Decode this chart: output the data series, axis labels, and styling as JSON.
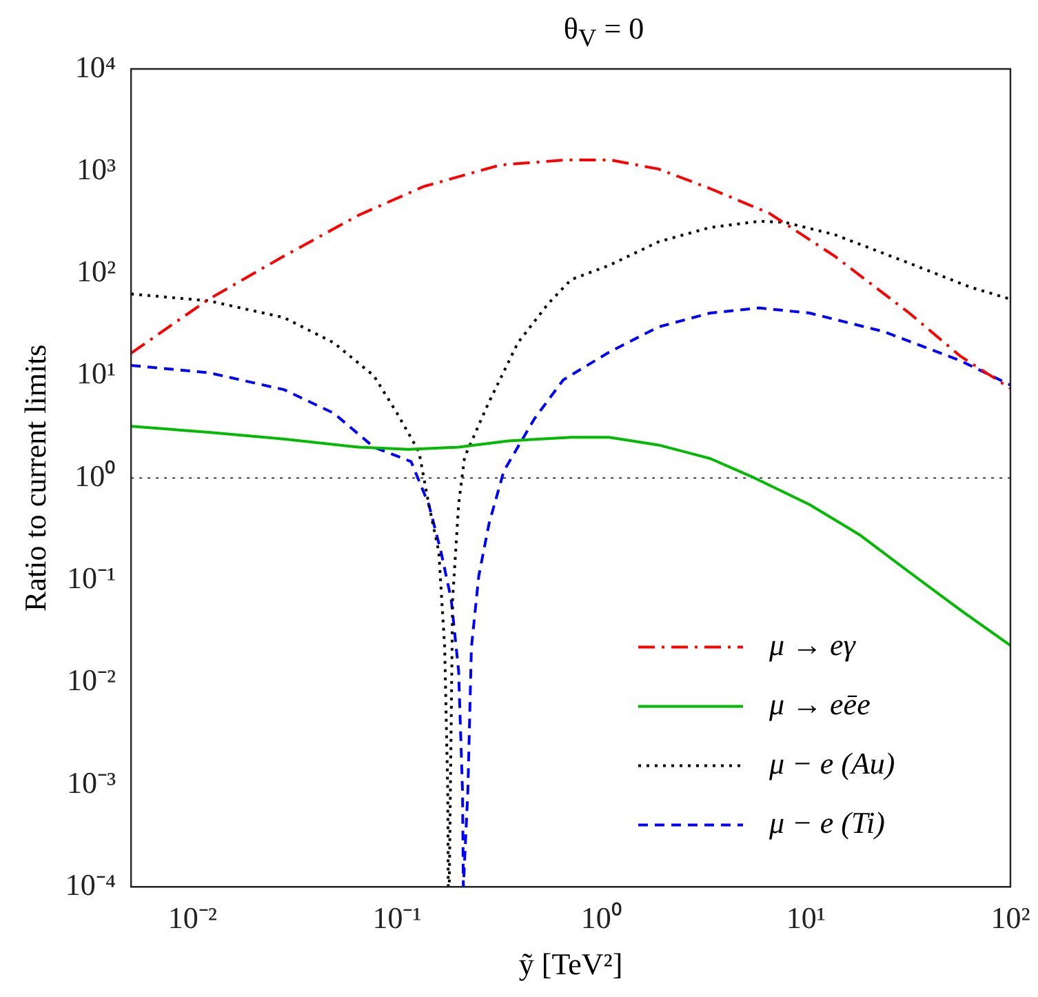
{
  "chart_data": {
    "type": "line",
    "title": "θ$_{V}$ = 0",
    "xlabel": "ỹ [TeV²]",
    "ylabel": "Ratio to current limits",
    "log": "xy",
    "grid": false,
    "legend": "bottom right",
    "marker": "none",
    "xlim": [
      0.005,
      100
    ],
    "ylim": [
      0.0001,
      10000
    ],
    "xticks": [
      {
        "value": 0.01,
        "label": "10⁻²"
      },
      {
        "value": 0.1,
        "label": "10⁻¹"
      },
      {
        "value": 1,
        "label": "10⁰"
      },
      {
        "value": 10,
        "label": "10¹"
      },
      {
        "value": 100,
        "label": "10²"
      }
    ],
    "yticks": [
      {
        "value": 0.0001,
        "label": "10⁻⁴"
      },
      {
        "value": 0.001,
        "label": "10⁻³"
      },
      {
        "value": 0.01,
        "label": "10⁻²"
      },
      {
        "value": 0.1,
        "label": "10⁻¹"
      },
      {
        "value": 1,
        "label": "10⁰"
      },
      {
        "value": 10,
        "label": "10¹"
      },
      {
        "value": 100,
        "label": "10²"
      },
      {
        "value": 1000,
        "label": "10³"
      },
      {
        "value": 10000,
        "label": "10⁴"
      }
    ],
    "ref_lines": [
      {
        "axis": "y",
        "value": 1,
        "color": "#000000",
        "line_style": "dotted"
      }
    ],
    "series": [
      {
        "name": "μ → eγ",
        "color": "#ff0000",
        "line_style": "dashdot",
        "x": [
          0.005,
          0.012,
          0.028,
          0.065,
          0.135,
          0.32,
          0.67,
          1.1,
          1.9,
          3.4,
          6.6,
          13.8,
          32,
          57,
          100
        ],
        "values": [
          16.6,
          56,
          148,
          372,
          708,
          1150,
          1290,
          1290,
          1050,
          676,
          389,
          148,
          41,
          15.5,
          7.5
        ]
      },
      {
        "name": "μ → eēe",
        "color": "#00bb00",
        "line_style": "solid",
        "x": [
          0.005,
          0.012,
          0.028,
          0.065,
          0.114,
          0.2,
          0.35,
          0.71,
          1.09,
          1.9,
          3.4,
          5.6,
          10.4,
          18.2,
          32,
          57,
          100
        ],
        "values": [
          3.2,
          2.8,
          2.4,
          2.0,
          1.9,
          2.0,
          2.3,
          2.5,
          2.5,
          2.1,
          1.55,
          1.0,
          0.55,
          0.28,
          0.12,
          0.051,
          0.023
        ]
      },
      {
        "name": "μ − e (Au)",
        "color": "#000000",
        "line_style": "dotted",
        "x": [
          0.005,
          0.012,
          0.028,
          0.049,
          0.077,
          0.1,
          0.128,
          0.143,
          0.16,
          0.171,
          0.177,
          0.178,
          0.18,
          0.187,
          0.2,
          0.214,
          0.28,
          0.39,
          0.55,
          0.71,
          1.09,
          1.9,
          3.4,
          5.9,
          7.9,
          13.8,
          32,
          63,
          100
        ],
        "values": [
          63,
          54,
          37,
          21,
          10,
          4.3,
          1.8,
          0.55,
          0.19,
          0.022,
          0.00087,
          0.0001,
          0.0001,
          0.065,
          0.55,
          1.6,
          5.4,
          21,
          51,
          87,
          120,
          204,
          282,
          324,
          316,
          240,
          126,
          74,
          56
        ]
      },
      {
        "name": "μ − e (Ti)",
        "color": "#0000ff",
        "line_style": "dashed",
        "x": [
          0.005,
          0.012,
          0.028,
          0.049,
          0.077,
          0.117,
          0.143,
          0.164,
          0.184,
          0.2,
          0.209,
          0.211,
          0.222,
          0.231,
          0.251,
          0.282,
          0.333,
          0.47,
          0.65,
          1.09,
          1.9,
          3.4,
          5.9,
          10.4,
          24,
          57,
          100
        ],
        "values": [
          12.6,
          10.7,
          7.3,
          4.3,
          2.0,
          1.45,
          0.55,
          0.19,
          0.065,
          0.013,
          0.00087,
          0.0001,
          0.00087,
          0.022,
          0.11,
          0.36,
          1.17,
          3.8,
          9.1,
          17,
          30,
          41,
          46,
          41,
          27,
          14,
          8.1
        ]
      }
    ]
  }
}
